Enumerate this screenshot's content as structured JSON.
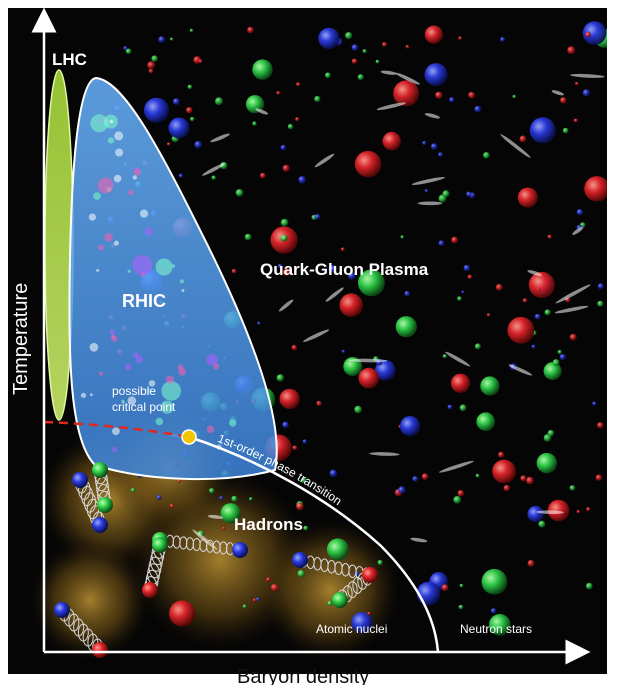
{
  "labels": {
    "lhc": "LHC",
    "rhic": "RHIC",
    "qgp": "Quark-Gluon Plasma",
    "critical_point": [
      "possible",
      "critical point"
    ],
    "transition": "1st-order phase transition",
    "hadrons": "Hadrons",
    "atomic_nuclei": "Atomic nuclei",
    "neutron_stars": "Neutron stars"
  },
  "axes": {
    "x_label": "Baryon density",
    "y_label": "Temperature"
  },
  "colors": {
    "background": "#050506",
    "lhc_region": "#b8e04a",
    "rhic_region": "#5aa8f0",
    "hadron_glow": "#b8892a",
    "boundary": "#ffffff",
    "critical_point": "#f5c400",
    "crossover_dash": "#e0281e",
    "quark_red": "#e0242a",
    "quark_green": "#2fd04a",
    "quark_blue": "#2a3adf"
  }
}
